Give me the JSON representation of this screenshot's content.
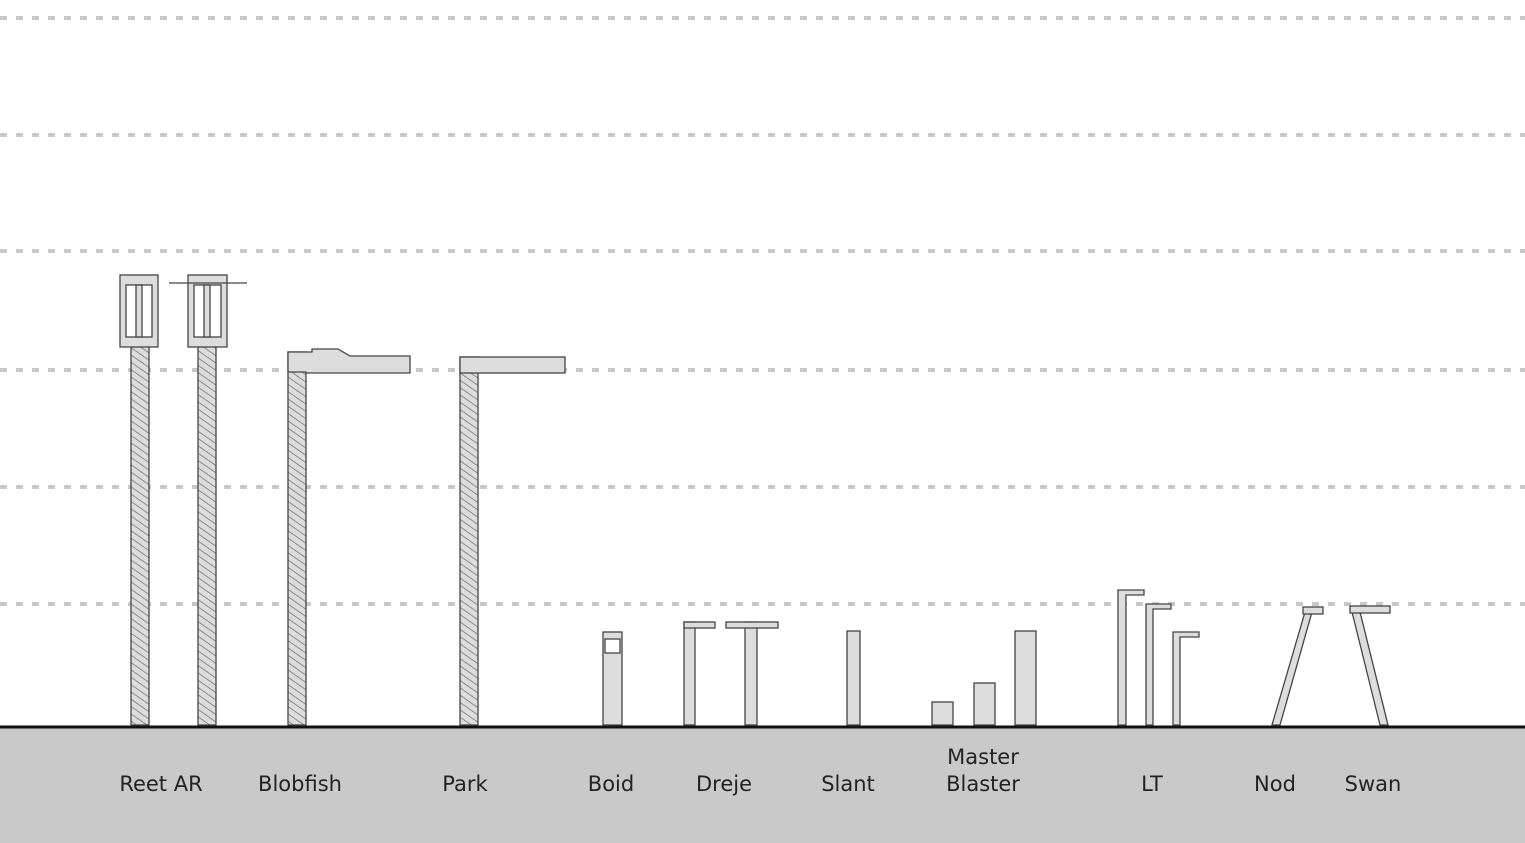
{
  "labels": [
    "Reet AR",
    "Blobfish",
    "Park",
    "Boid",
    "Dreje",
    "Slant",
    "Master Blaster",
    "LT",
    "Nod",
    "Swan"
  ]
}
